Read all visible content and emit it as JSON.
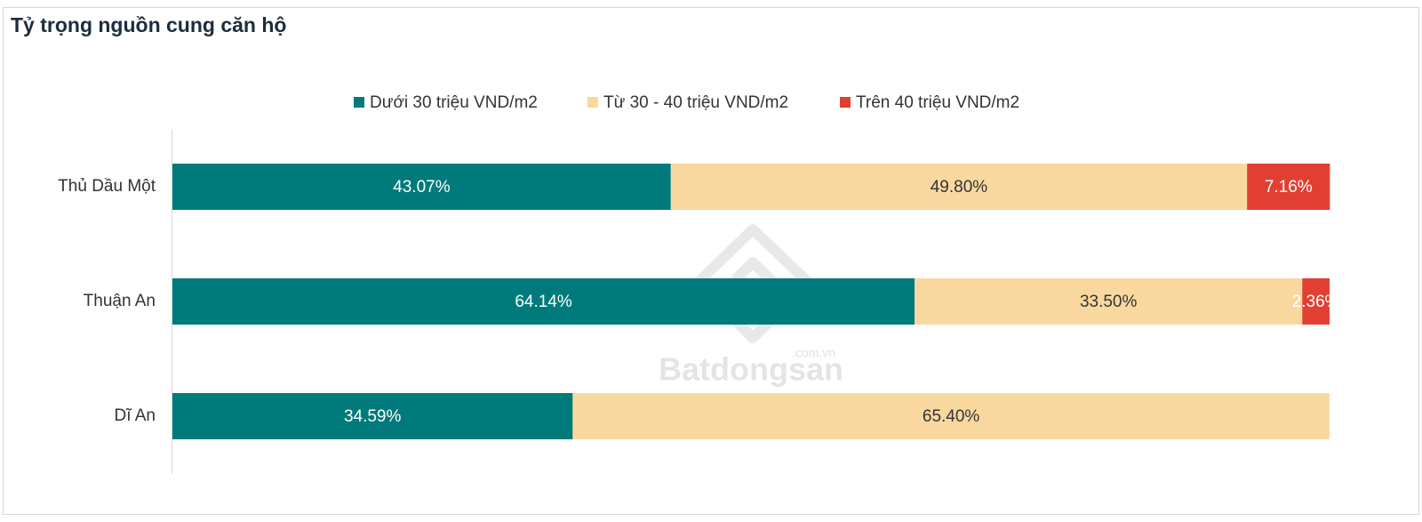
{
  "chart_data": {
    "type": "stacked-bar-horizontal",
    "title": "Tỷ trọng nguồn cung căn hộ",
    "watermark": "Batdongsan",
    "watermark_sub": ".com.vn",
    "categories": [
      "Thủ Dầu Một",
      "Thuận An",
      "Dĩ An"
    ],
    "xlim": [
      0,
      100
    ],
    "legend": "top",
    "series": [
      {
        "name": "Dưới 30 triệu VND/m2",
        "color": "#007a7a",
        "values": [
          43.07,
          64.14,
          34.59
        ],
        "value_labels": [
          "43.07%",
          "64.14%",
          "34.59%"
        ]
      },
      {
        "name": "Từ 30 - 40 triệu VND/m2",
        "color": "#f9d8a0",
        "values": [
          49.8,
          33.5,
          65.4
        ],
        "value_labels": [
          "49.80%",
          "33.50%",
          "65.40%"
        ]
      },
      {
        "name": "Trên 40 triệu VND/m2",
        "color": "#e23f33",
        "values": [
          7.16,
          2.36,
          null
        ],
        "value_labels": [
          "7.16%",
          "2.36%",
          null
        ]
      }
    ]
  }
}
